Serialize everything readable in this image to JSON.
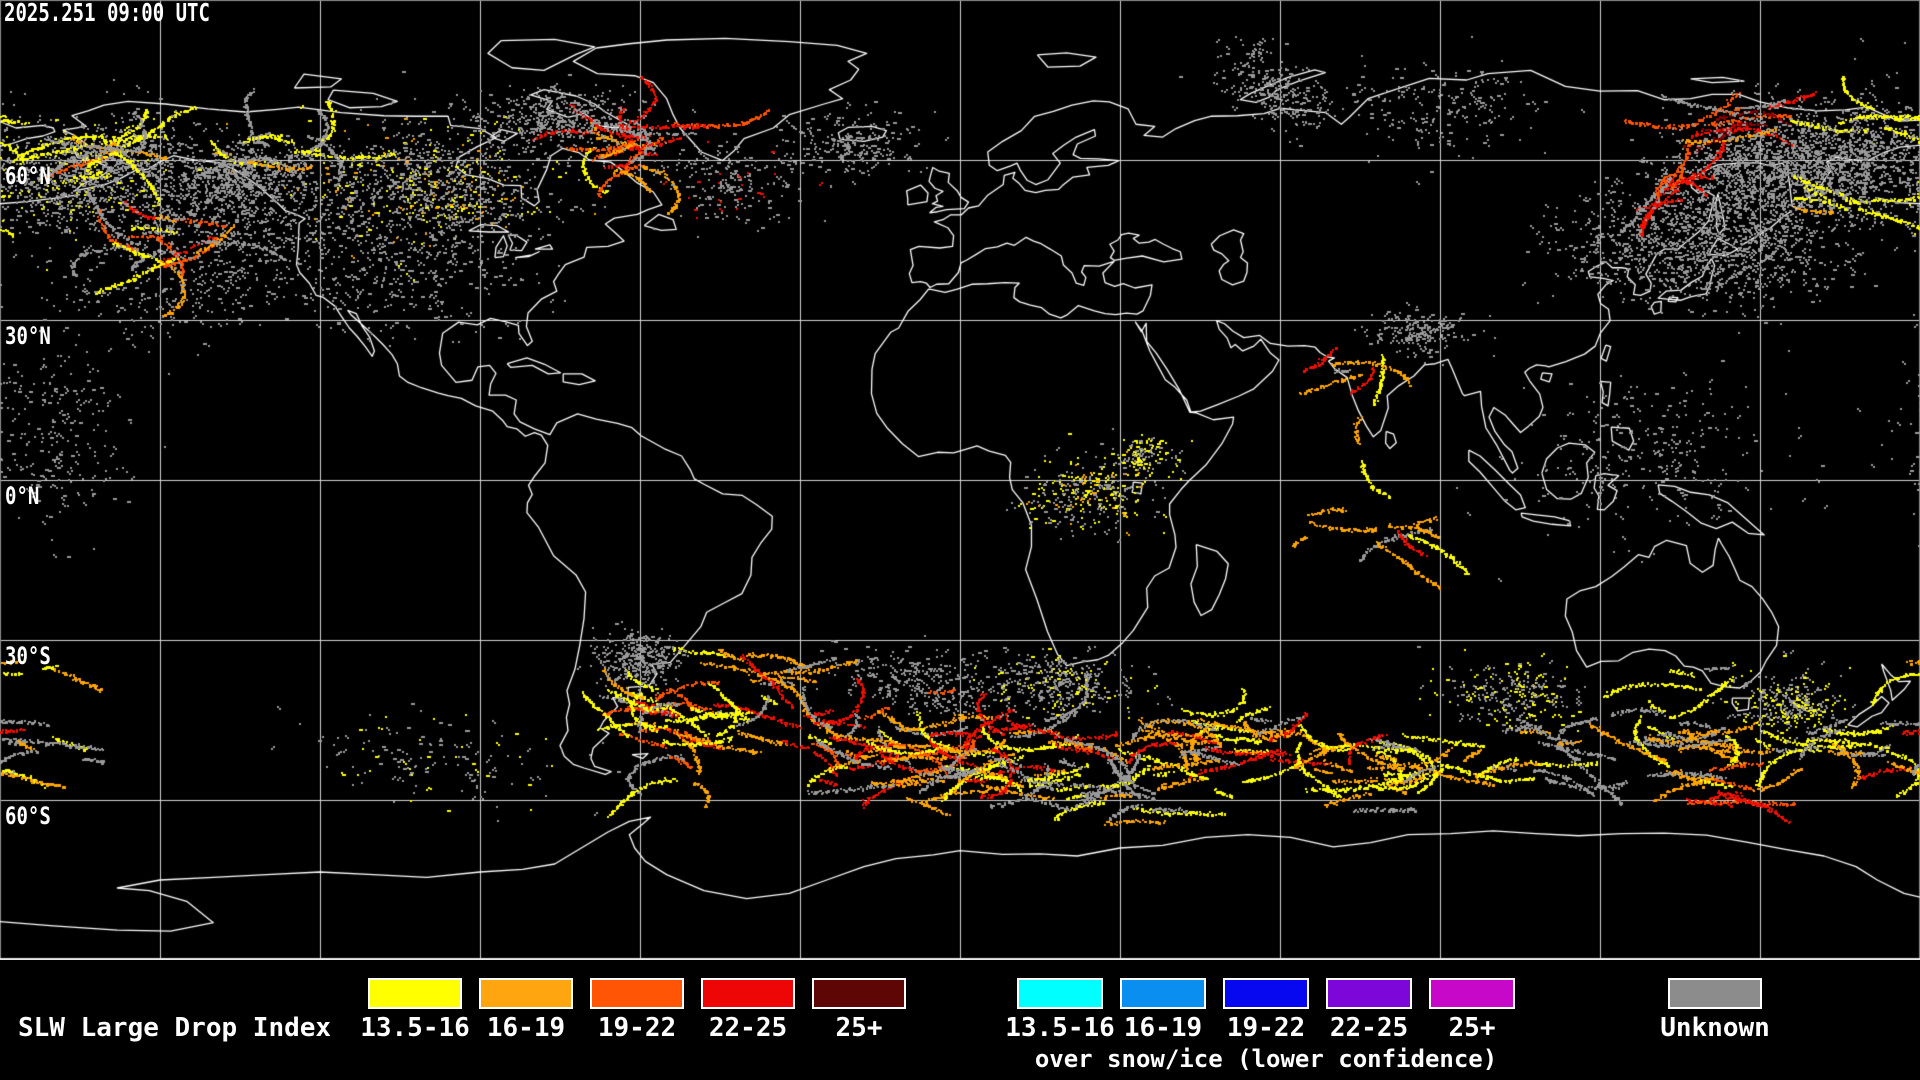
{
  "header": {
    "timestamp": "2025.251 09:00 UTC"
  },
  "map": {
    "background": "#000000",
    "coast_color": "#ffffff",
    "grid_color": "#d4d4d4",
    "border_color": "#8c8c8c",
    "bottom_line_color": "#e8e8e8",
    "lon_min": -180,
    "lon_max": 180,
    "lat_min": -90,
    "lat_max": 90,
    "grid_step_deg": 30,
    "lat_labels": [
      {
        "text": "60°N",
        "lat": 60
      },
      {
        "text": "30°N",
        "lat": 30
      },
      {
        "text": "0°N",
        "lat": 0
      },
      {
        "text": "30°S",
        "lat": -30
      },
      {
        "text": "60°S",
        "lat": -60
      }
    ]
  },
  "legend": {
    "title": "SLW Large Drop Index",
    "normal": {
      "items": [
        {
          "label": "13.5-16",
          "color": "#ffff00"
        },
        {
          "label": "16-19",
          "color": "#ffa510"
        },
        {
          "label": "19-22",
          "color": "#ff5505"
        },
        {
          "label": "22-25",
          "color": "#ee0505"
        },
        {
          "label": "25+",
          "color": "#5e0606"
        }
      ]
    },
    "snow_ice": {
      "caption": "over snow/ice (lower confidence)",
      "items": [
        {
          "label": "13.5-16",
          "color": "#00ffff"
        },
        {
          "label": "16-19",
          "color": "#0a8ff0"
        },
        {
          "label": "19-22",
          "color": "#0808f0"
        },
        {
          "label": "22-25",
          "color": "#7d06d8"
        },
        {
          "label": "25+",
          "color": "#c808c8"
        }
      ]
    },
    "unknown": {
      "label": "Unknown",
      "color": "#8c8c8c"
    }
  },
  "palette": {
    "Y": "#ffff00",
    "O": "#ffa500",
    "Q": "#ff5500",
    "R": "#f01000",
    "D": "#8b0000",
    "G": "#999999"
  },
  "data_clusters": [
    {
      "lon": -165,
      "lat": 57,
      "dlon": 9,
      "dlat": 5,
      "rot": -20,
      "n": 800,
      "mode": "dust",
      "colors": {
        "G": 5,
        "Y": 1
      }
    },
    {
      "lon": -159,
      "lat": 62,
      "dlon": 5,
      "dlat": 3,
      "rot": -15,
      "n": 700,
      "mode": "worm",
      "colors": {
        "Y": 4,
        "O": 2,
        "Q": 1,
        "G": 2
      }
    },
    {
      "lon": -150,
      "lat": 45,
      "dlon": 5,
      "dlat": 4,
      "rot": 10,
      "n": 800,
      "mode": "worm",
      "colors": {
        "O": 3,
        "Q": 2,
        "R": 1.5,
        "Y": 2,
        "G": 1.5
      }
    },
    {
      "lon": -140,
      "lat": 52,
      "dlon": 12,
      "dlat": 6,
      "rot": 5,
      "n": 800,
      "mode": "dust",
      "colors": {
        "G": 1
      }
    },
    {
      "lon": -127,
      "lat": 63,
      "dlon": 6,
      "dlat": 3.5,
      "rot": 0,
      "n": 550,
      "mode": "worm",
      "colors": {
        "Y": 3,
        "O": 1.5,
        "G": 2
      }
    },
    {
      "lon": -100,
      "lat": 55,
      "dlon": 12,
      "dlat": 6,
      "rot": 0,
      "n": 1000,
      "mode": "dust",
      "colors": {
        "G": 5,
        "Y": 1,
        "O": 0.5
      }
    },
    {
      "lon": -62,
      "lat": 62.5,
      "dlon": 6,
      "dlat": 3,
      "rot": -10,
      "n": 900,
      "mode": "worm",
      "colors": {
        "Q": 3,
        "R": 2.5,
        "O": 2,
        "Y": 1,
        "G": 1.5
      }
    },
    {
      "lon": -75,
      "lat": 68,
      "dlon": 8,
      "dlat": 3,
      "rot": 0,
      "n": 400,
      "mode": "dust",
      "colors": {
        "G": 1
      }
    },
    {
      "lon": -45,
      "lat": 57,
      "dlon": 8,
      "dlat": 4,
      "rot": 0,
      "n": 220,
      "mode": "dust",
      "colors": {
        "G": 5,
        "R": 0.4
      }
    },
    {
      "lon": -20,
      "lat": 63,
      "dlon": 6,
      "dlat": 3,
      "rot": 0,
      "n": 220,
      "mode": "dust",
      "colors": {
        "G": 1
      }
    },
    {
      "lon": -105,
      "lat": 38,
      "dlon": 12,
      "dlat": 6,
      "rot": 0,
      "n": 320,
      "mode": "dust",
      "colors": {
        "G": 1
      }
    },
    {
      "lon": -150,
      "lat": 35,
      "dlon": 12,
      "dlat": 5,
      "rot": 0,
      "n": 220,
      "mode": "dust",
      "colors": {
        "G": 1
      }
    },
    {
      "lon": -170,
      "lat": 8,
      "dlon": 8,
      "dlat": 8,
      "rot": 0,
      "n": 240,
      "mode": "dust",
      "colors": {
        "G": 1
      }
    },
    {
      "lon": 58,
      "lat": 74,
      "dlon": 6,
      "dlat": 3,
      "rot": 30,
      "n": 260,
      "mode": "dust",
      "colors": {
        "G": 1
      }
    },
    {
      "lon": 90,
      "lat": 70,
      "dlon": 10,
      "dlat": 4,
      "rot": 0,
      "n": 200,
      "mode": "dust",
      "colors": {
        "G": 1
      }
    },
    {
      "lon": 144,
      "lat": 67,
      "dlon": 5,
      "dlat": 2.5,
      "rot": -10,
      "n": 650,
      "mode": "worm",
      "colors": {
        "D": 3,
        "R": 2.5,
        "Q": 1,
        "O": 1,
        "G": 1
      }
    },
    {
      "lon": 152,
      "lat": 58,
      "dlon": 12,
      "dlat": 6,
      "rot": -15,
      "n": 1500,
      "mode": "dust",
      "colors": {
        "G": 1
      }
    },
    {
      "lon": 133,
      "lat": 56,
      "dlon": 4,
      "dlat": 2.5,
      "rot": -30,
      "n": 450,
      "mode": "worm",
      "colors": {
        "R": 2,
        "Q": 2,
        "O": 1.5,
        "Y": 1,
        "G": 1
      }
    },
    {
      "lon": 170,
      "lat": 68,
      "dlon": 3,
      "dlat": 1.5,
      "rot": 0,
      "n": 220,
      "mode": "worm",
      "colors": {
        "Y": 1
      }
    },
    {
      "lon": 168,
      "lat": 52,
      "dlon": 3,
      "dlat": 1.5,
      "rot": 20,
      "n": 260,
      "mode": "worm",
      "colors": {
        "O": 2,
        "Y": 2,
        "Q": 1
      }
    },
    {
      "lon": 170,
      "lat": 60,
      "dlon": 8,
      "dlat": 5,
      "rot": 0,
      "n": 500,
      "mode": "dust",
      "colors": {
        "G": 1
      }
    },
    {
      "lon": 145,
      "lat": 43,
      "dlon": 10,
      "dlat": 5,
      "rot": 0,
      "n": 650,
      "mode": "dust",
      "colors": {
        "G": 1
      }
    },
    {
      "lon": 125,
      "lat": 45,
      "dlon": 8,
      "dlat": 5,
      "rot": 0,
      "n": 300,
      "mode": "dust",
      "colors": {
        "G": 1
      }
    },
    {
      "lon": 72,
      "lat": 20,
      "dlon": 4,
      "dlat": 4,
      "rot": -40,
      "n": 280,
      "mode": "worm",
      "colors": {
        "O": 2,
        "R": 1.5,
        "Y": 1,
        "G": 1
      }
    },
    {
      "lon": 86,
      "lat": 28,
      "dlon": 5,
      "dlat": 2,
      "rot": 0,
      "n": 180,
      "mode": "dust",
      "colors": {
        "G": 1
      }
    },
    {
      "lon": 24,
      "lat": -2,
      "dlon": 6,
      "dlat": 3.5,
      "rot": 0,
      "n": 300,
      "mode": "dust",
      "colors": {
        "G": 3,
        "Y": 2,
        "O": 0.5
      }
    },
    {
      "lon": 80,
      "lat": -9,
      "dlon": 12,
      "dlat": 4,
      "rot": 10,
      "n": 400,
      "mode": "worm",
      "colors": {
        "O": 2,
        "R": 1.5,
        "Y": 1,
        "G": 0.8
      }
    },
    {
      "lon": 128,
      "lat": 5,
      "dlon": 12,
      "dlat": 7,
      "rot": 0,
      "n": 280,
      "mode": "dust",
      "colors": {
        "G": 1
      }
    },
    {
      "lon": -52,
      "lat": -47,
      "dlon": 7,
      "dlat": 6,
      "rot": 20,
      "n": 1400,
      "mode": "worm",
      "colors": {
        "Y": 3,
        "O": 2,
        "Q": 1,
        "R": 0.8,
        "G": 1.5
      }
    },
    {
      "lon": -40,
      "lat": -36,
      "dlon": 6,
      "dlat": 3,
      "rot": 20,
      "n": 380,
      "mode": "worm",
      "colors": {
        "O": 1.5,
        "R": 1,
        "Y": 1,
        "D": 0.5,
        "G": 1
      }
    },
    {
      "lon": -20,
      "lat": -50,
      "dlon": 12,
      "dlat": 5,
      "rot": 10,
      "n": 1500,
      "mode": "worm",
      "colors": {
        "R": 2.5,
        "Q": 2,
        "O": 2,
        "Y": 1.5,
        "G": 1.5
      }
    },
    {
      "lon": 8,
      "lat": -52,
      "dlon": 14,
      "dlat": 5,
      "rot": 5,
      "n": 1800,
      "mode": "worm",
      "colors": {
        "O": 2.5,
        "Y": 2,
        "R": 2,
        "Q": 1,
        "G": 2
      }
    },
    {
      "lon": 25,
      "lat": -59,
      "dlon": 12,
      "dlat": 3,
      "rot": 3,
      "n": 900,
      "mode": "worm",
      "colors": {
        "G": 3,
        "Y": 1,
        "O": 0.6
      }
    },
    {
      "lon": 45,
      "lat": -49,
      "dlon": 10,
      "dlat": 4.5,
      "rot": 8,
      "n": 1200,
      "mode": "worm",
      "colors": {
        "Y": 2.5,
        "O": 2,
        "R": 1.2,
        "G": 1.2
      }
    },
    {
      "lon": 75,
      "lat": -52,
      "dlon": 12,
      "dlat": 4,
      "rot": 5,
      "n": 1300,
      "mode": "worm",
      "colors": {
        "O": 2.5,
        "Y": 2.5,
        "R": 1,
        "G": 1
      }
    },
    {
      "lon": 110,
      "lat": -52,
      "dlon": 10,
      "dlat": 4,
      "rot": 5,
      "n": 700,
      "mode": "worm",
      "colors": {
        "G": 2.5,
        "Y": 1.5,
        "O": 0.8
      }
    },
    {
      "lon": 135,
      "lat": -47,
      "dlon": 9,
      "dlat": 5,
      "rot": 15,
      "n": 900,
      "mode": "worm",
      "colors": {
        "Y": 2.5,
        "G": 1.5,
        "O": 1
      }
    },
    {
      "lon": 143,
      "lat": -58,
      "dlon": 5,
      "dlat": 2,
      "rot": 5,
      "n": 450,
      "mode": "worm",
      "colors": {
        "Q": 2,
        "R": 2,
        "O": 1,
        "Y": 1
      }
    },
    {
      "lon": 165,
      "lat": -50,
      "dlon": 8,
      "dlat": 4,
      "rot": 10,
      "n": 600,
      "mode": "worm",
      "colors": {
        "G": 2,
        "Y": 1.5,
        "O": 0.5
      }
    },
    {
      "lon": -172,
      "lat": -50,
      "dlon": 6,
      "dlat": 5,
      "rot": 15,
      "n": 450,
      "mode": "worm",
      "colors": {
        "Y": 1.5,
        "G": 1.5,
        "O": 0.8,
        "R": 0.6
      }
    },
    {
      "lon": -100,
      "lat": -52,
      "dlon": 12,
      "dlat": 4,
      "rot": 5,
      "n": 150,
      "mode": "dust",
      "colors": {
        "G": 2,
        "Y": 0.7
      }
    },
    {
      "lon": -60,
      "lat": -33,
      "dlon": 4,
      "dlat": 2.5,
      "rot": 0,
      "n": 280,
      "mode": "dust",
      "colors": {
        "G": 1
      }
    },
    {
      "lon": 18,
      "lat": -38,
      "dlon": 8,
      "dlat": 3,
      "rot": 0,
      "n": 350,
      "mode": "dust",
      "colors": {
        "G": 5,
        "Y": 1
      }
    },
    {
      "lon": -8,
      "lat": -38,
      "dlon": 8,
      "dlat": 3,
      "rot": 10,
      "n": 250,
      "mode": "dust",
      "colors": {
        "G": 1
      }
    },
    {
      "lon": 103,
      "lat": -40,
      "dlon": 6,
      "dlat": 3,
      "rot": 0,
      "n": 250,
      "mode": "dust",
      "colors": {
        "G": 1.5,
        "Y": 1
      }
    },
    {
      "lon": 155,
      "lat": -42,
      "dlon": 5,
      "dlat": 3,
      "rot": 0,
      "n": 300,
      "mode": "dust",
      "colors": {
        "G": 2,
        "Y": 1
      }
    },
    {
      "lon": -135,
      "lat": 57,
      "dlon": 4,
      "dlat": 2.5,
      "rot": 0,
      "n": 280,
      "mode": "dust",
      "colors": {
        "G": 1
      }
    },
    {
      "lon": 35,
      "lat": 5,
      "dlon": 3,
      "dlat": 2,
      "rot": 0,
      "n": 120,
      "mode": "dust",
      "colors": {
        "Y": 1,
        "G": 1
      }
    },
    {
      "lon": -175,
      "lat": -35,
      "dlon": 4,
      "dlat": 2,
      "rot": 10,
      "n": 160,
      "mode": "worm",
      "colors": {
        "Y": 1.5,
        "O": 1
      }
    }
  ]
}
